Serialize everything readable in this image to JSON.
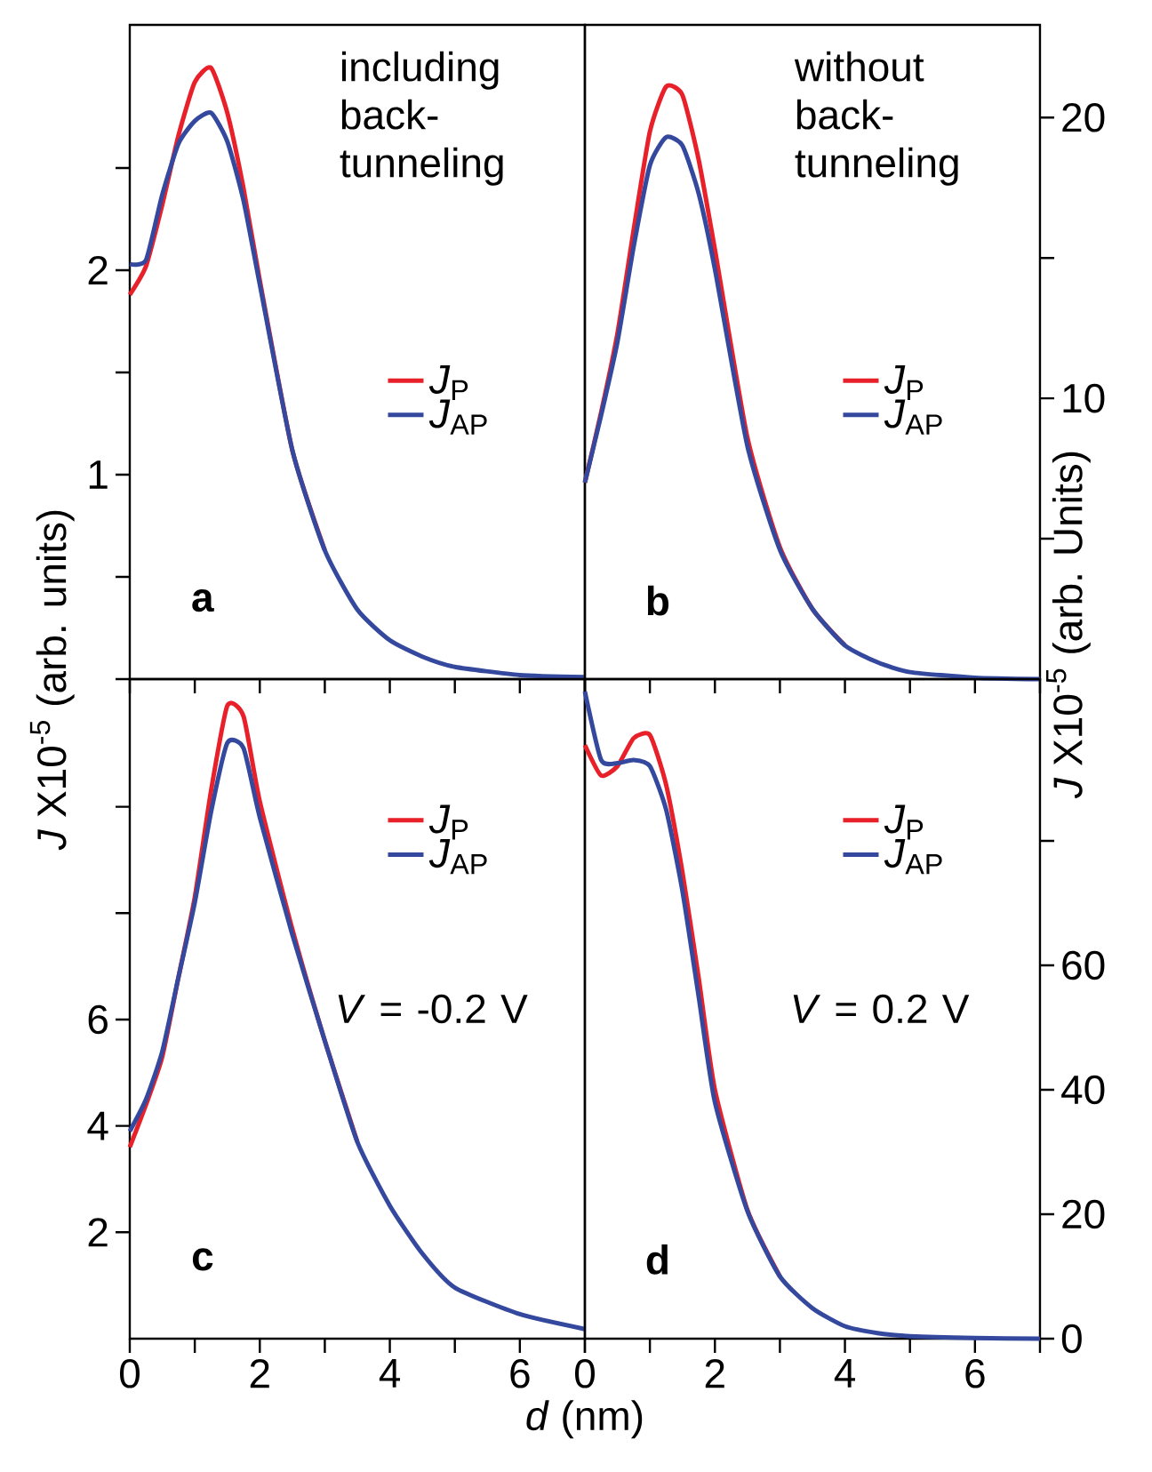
{
  "chart_data": [
    {
      "type": "line",
      "ylabel": "*J* X10$^{-5}$ (arb. units)",
      "annotations": [
        "**a**",
        "including back-tunneling"
      ],
      "legend": "right",
      "tick_labels": "y",
      "x": [
        0,
        0.25,
        0.5,
        0.75,
        1,
        1.25,
        1.5,
        1.75,
        2,
        2.5,
        3,
        3.5,
        4,
        4.5,
        5,
        6,
        7
      ],
      "xlim": [
        0,
        7
      ],
      "xticks": [
        0,
        {
          "value": 1,
          "label": null
        },
        2,
        {
          "value": 3,
          "label": null
        },
        4,
        {
          "value": 5,
          "label": null
        },
        6,
        {
          "value": 7,
          "label": null
        }
      ],
      "ylim": [
        0,
        3.2
      ],
      "yticks": [
        {
          "value": 0,
          "label": null
        },
        {
          "value": 0.5,
          "label": null
        },
        1,
        {
          "value": 1.5,
          "label": null
        },
        2,
        {
          "value": 2.5,
          "label": null
        }
      ],
      "series": [
        {
          "name": "*J*$_{P}$",
          "color": "#e8202a",
          "values": [
            1.88,
            2.02,
            2.32,
            2.66,
            2.92,
            2.99,
            2.77,
            2.4,
            1.95,
            1.12,
            0.63,
            null,
            null,
            null,
            null,
            null,
            null
          ]
        },
        {
          "name": "*J*$_{AP}$",
          "color": "#34499e",
          "values": [
            2.03,
            2.05,
            2.37,
            2.62,
            2.73,
            2.77,
            2.63,
            2.34,
            1.93,
            1.12,
            0.63,
            0.34,
            0.19,
            0.11,
            0.06,
            0.02,
            0.01
          ]
        }
      ]
    },
    {
      "type": "line",
      "y2label": "*J* X10$^{-5}$ (arb. Units)",
      "annotations": [
        "**b**",
        "without back-tunneling"
      ],
      "legend": "right",
      "tick_labels": "y",
      "x": [
        0,
        0.25,
        0.5,
        0.75,
        1,
        1.25,
        1.5,
        1.75,
        2,
        2.5,
        3,
        3.5,
        4,
        4.5,
        5,
        6,
        7
      ],
      "xlim": [
        0,
        7
      ],
      "xticks": [
        0,
        {
          "value": 1,
          "label": null
        },
        2,
        {
          "value": 3,
          "label": null
        },
        4,
        {
          "value": 5,
          "label": null
        },
        6,
        {
          "value": 7,
          "label": null
        }
      ],
      "y2lim": [
        0,
        23.3
      ],
      "y2ticks": [
        {
          "value": 5,
          "label": null
        },
        10,
        {
          "value": 15,
          "label": null
        },
        20
      ],
      "series": [
        {
          "name": "*J*$_{P}$",
          "color": "#e8202a",
          "axis": "y2",
          "values": [
            7.0,
            9.5,
            12.3,
            16.0,
            19.5,
            21.1,
            20.8,
            18.5,
            15.3,
            8.6,
            4.7,
            2.5,
            1.2,
            null,
            null,
            null,
            null
          ]
        },
        {
          "name": "*J*$_{AP}$",
          "color": "#34499e",
          "axis": "y2",
          "values": [
            7.0,
            9.4,
            12.0,
            15.4,
            18.3,
            19.3,
            19.0,
            17.3,
            14.6,
            8.3,
            4.6,
            2.5,
            1.2,
            0.6,
            0.25,
            0.05,
            0
          ]
        }
      ]
    },
    {
      "type": "line",
      "xlabel": "*d* (nm)",
      "annotations": [
        "**c**",
        "*V* = -0.2 V"
      ],
      "legend": "top right",
      "x": [
        0,
        0.25,
        0.5,
        0.75,
        1,
        1.25,
        1.5,
        1.75,
        2,
        2.5,
        3,
        3.5,
        4,
        4.5,
        5,
        6,
        7
      ],
      "xlim": [
        0,
        7
      ],
      "xticks": [
        0,
        {
          "value": 1,
          "label": null
        },
        2,
        {
          "value": 3,
          "label": null
        },
        4,
        {
          "value": 5,
          "label": null
        },
        6,
        {
          "value": 7,
          "label": null
        }
      ],
      "ylim": [
        0,
        12.4
      ],
      "yticks": [
        2,
        4,
        6,
        {
          "value": 8,
          "label": null
        },
        {
          "value": 10,
          "label": null
        }
      ],
      "series": [
        {
          "name": "*J*$_{P}$",
          "color": "#e8202a",
          "values": [
            3.6,
            4.4,
            5.3,
            6.8,
            8.3,
            10.3,
            11.9,
            11.7,
            10.1,
            7.7,
            5.6,
            3.7,
            null,
            null,
            null,
            null,
            null
          ]
        },
        {
          "name": "*J*$_{AP}$",
          "color": "#34499e",
          "values": [
            3.9,
            4.5,
            5.4,
            6.8,
            8.2,
            9.9,
            11.2,
            11.1,
            9.8,
            7.6,
            5.6,
            3.7,
            2.5,
            1.6,
            0.96,
            0.46,
            0.18
          ]
        }
      ]
    },
    {
      "type": "line",
      "annotations": [
        "**d**",
        "*V* = 0.2 V"
      ],
      "legend": "top right",
      "x": [
        0,
        0.25,
        0.5,
        0.75,
        1,
        1.25,
        1.5,
        1.75,
        2,
        2.5,
        3,
        3.5,
        4,
        4.5,
        5,
        6,
        7
      ],
      "xlim": [
        0,
        7
      ],
      "xticks": [
        0,
        {
          "value": 1,
          "label": null
        },
        2,
        {
          "value": 3,
          "label": null
        },
        4,
        {
          "value": 5,
          "label": null
        },
        6,
        {
          "value": 7,
          "label": null
        }
      ],
      "y2lim": [
        0,
        106
      ],
      "y2ticks": [
        0,
        20,
        40,
        60,
        {
          "value": 80,
          "label": null
        }
      ],
      "series": [
        {
          "name": "*J*$_{P}$",
          "color": "#e8202a",
          "axis": "y2",
          "values": [
            95.4,
            90.5,
            92,
            96.5,
            97,
            89,
            75,
            58,
            40,
            20.7,
            10,
            null,
            null,
            null,
            null,
            null,
            null
          ]
        },
        {
          "name": "*J*$_{AP}$",
          "color": "#34499e",
          "axis": "y2",
          "values": [
            104,
            93,
            92.5,
            93,
            92,
            85,
            72,
            55,
            38,
            20.5,
            10,
            4.9,
            2,
            0.9,
            0.4,
            0.1,
            0
          ]
        }
      ]
    }
  ]
}
